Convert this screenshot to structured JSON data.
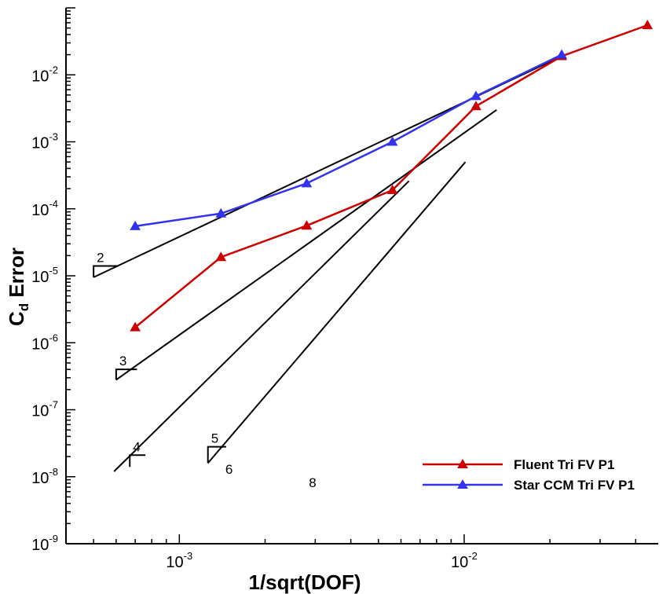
{
  "chart_data": {
    "type": "line",
    "xlabel": "1/sqrt(DOF)",
    "ylabel_main": "C",
    "ylabel_sub": "d",
    "ylabel_rest": " Error",
    "xscale": "log",
    "yscale": "log",
    "xlim": [
      0.0004,
      0.048
    ],
    "ylim": [
      1e-09,
      0.1
    ],
    "grid": false,
    "legend_position": "bottom-right",
    "x_ticks": [
      {
        "value": 0.001,
        "base": "10",
        "exp": "-3"
      },
      {
        "value": 0.01,
        "base": "10",
        "exp": "-2"
      }
    ],
    "y_ticks": [
      {
        "value": 1e-09,
        "base": "10",
        "exp": "-9"
      },
      {
        "value": 1e-08,
        "base": "10",
        "exp": "-8"
      },
      {
        "value": 1e-07,
        "base": "10",
        "exp": "-7"
      },
      {
        "value": 1e-06,
        "base": "10",
        "exp": "-6"
      },
      {
        "value": 1e-05,
        "base": "10",
        "exp": "-5"
      },
      {
        "value": 0.0001,
        "base": "10",
        "exp": "-4"
      },
      {
        "value": 0.001,
        "base": "10",
        "exp": "-3"
      },
      {
        "value": 0.01,
        "base": "10",
        "exp": "-2"
      }
    ],
    "series": [
      {
        "name": "Fluent Tri FV P1",
        "color": "#cc0000",
        "marker": "triangle",
        "x": [
          0.0007,
          0.0014,
          0.0028,
          0.0056,
          0.011,
          0.022,
          0.044
        ],
        "y": [
          1.7e-06,
          1.9e-05,
          5.6e-05,
          0.00019,
          0.0034,
          0.019,
          0.055
        ]
      },
      {
        "name": "Star CCM Tri FV P1",
        "color": "#3333ee",
        "marker": "triangle",
        "x": [
          0.0007,
          0.0014,
          0.0028,
          0.0056,
          0.011,
          0.022
        ],
        "y": [
          5.5e-05,
          8.5e-05,
          0.00024,
          0.001,
          0.0048,
          0.02
        ]
      }
    ],
    "reference_lines": [
      {
        "x": [
          0.0005,
          0.022
        ],
        "y": [
          9.5e-06,
          0.019
        ],
        "label": "2",
        "triangle": {
          "x": [
            0.0005,
            0.00061
          ],
          "y": [
            9.5e-06,
            1.4e-05
          ]
        }
      },
      {
        "x": [
          0.0006,
          0.013
        ],
        "y": [
          2.8e-07,
          0.003
        ],
        "label": "3",
        "triangle": {
          "x": [
            0.0006,
            0.00071
          ],
          "y": [
            2.8e-07,
            4e-07
          ]
        }
      },
      {
        "x": [
          0.00059,
          0.0064
        ],
        "y": [
          1.2e-08,
          0.00026
        ],
        "label": "4",
        "triangle": {
          "x": [
            0.00067,
            0.00076
          ],
          "y": [
            1.4e-08,
            2.1e-08
          ]
        }
      },
      {
        "x": [
          0.00126,
          0.0101
        ],
        "y": [
          1.6e-08,
          0.0005
        ],
        "label": "5",
        "triangle": {
          "x": [
            0.00126,
            0.00146
          ],
          "y": [
            1.6e-08,
            2.8e-08
          ]
        }
      }
    ],
    "annotations": [
      {
        "text": "6",
        "x": 0.00145,
        "y": 1.1e-08
      },
      {
        "text": "8",
        "x": 0.00285,
        "y": 7e-09
      }
    ]
  }
}
